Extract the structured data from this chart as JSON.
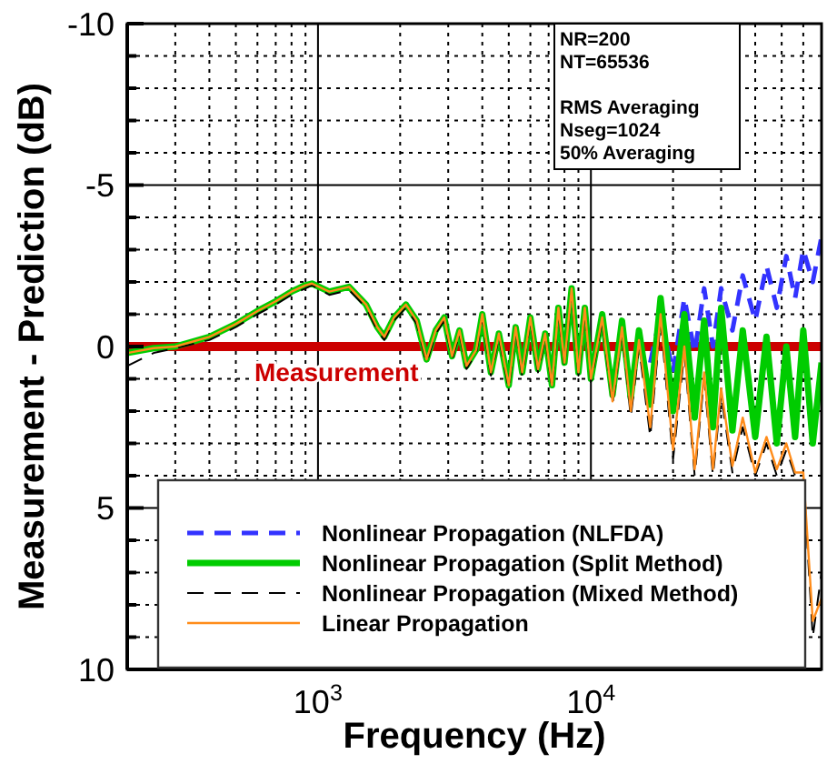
{
  "chart_data": {
    "type": "line",
    "xlabel": "Frequency (Hz)",
    "ylabel": "Measurement - Prediction (dB)",
    "log": "x",
    "xlim": [
      200,
      70000
    ],
    "ylim": [
      10,
      -10
    ],
    "xticks": [
      {
        "value": 300,
        "label": null
      },
      {
        "value": 400,
        "label": null
      },
      {
        "value": 500,
        "label": null
      },
      {
        "value": 600,
        "label": null
      },
      {
        "value": 700,
        "label": null
      },
      {
        "value": 800,
        "label": null
      },
      {
        "value": 900,
        "label": null
      },
      {
        "value": 1000,
        "label": "10$^{3}$"
      },
      {
        "value": 2000,
        "label": null
      },
      {
        "value": 3000,
        "label": null
      },
      {
        "value": 4000,
        "label": null
      },
      {
        "value": 5000,
        "label": null
      },
      {
        "value": 6000,
        "label": null
      },
      {
        "value": 7000,
        "label": null
      },
      {
        "value": 8000,
        "label": null
      },
      {
        "value": 9000,
        "label": null
      },
      {
        "value": 10000,
        "label": "10$^{4}$"
      },
      {
        "value": 20000,
        "label": null
      },
      {
        "value": 30000,
        "label": null
      },
      {
        "value": 40000,
        "label": null
      },
      {
        "value": 50000,
        "label": null
      },
      {
        "value": 60000,
        "label": null
      }
    ],
    "yticks": [
      -10,
      {
        "value": -9,
        "label": null
      },
      {
        "value": -8,
        "label": null
      },
      {
        "value": -7,
        "label": null
      },
      {
        "value": -6,
        "label": null
      },
      -5,
      {
        "value": -4,
        "label": null
      },
      {
        "value": -3,
        "label": null
      },
      {
        "value": -2,
        "label": null
      },
      {
        "value": -1,
        "label": null
      },
      0,
      {
        "value": 1,
        "label": null
      },
      {
        "value": 2,
        "label": null
      },
      {
        "value": 3,
        "label": null
      },
      {
        "value": 4,
        "label": null
      },
      5,
      {
        "value": 6,
        "label": null
      },
      {
        "value": 7,
        "label": null
      },
      {
        "value": 8,
        "label": null
      },
      {
        "value": 9,
        "label": null
      },
      10
    ],
    "grid": true,
    "legend": "bottom",
    "marker": "none",
    "x": [
      200,
      250,
      300,
      400,
      500,
      600,
      700,
      800,
      900,
      950,
      1100,
      1300,
      1500,
      1650,
      1750,
      1900,
      2100,
      2300,
      2500,
      2700,
      2900,
      3100,
      3300,
      3500,
      3800,
      4000,
      4300,
      4600,
      5000,
      5300,
      5600,
      6000,
      6400,
      6800,
      7200,
      7600,
      8000,
      8500,
      9000,
      9500,
      10000,
      11000,
      12000,
      13000,
      14000,
      15000,
      16500,
      18000,
      20000,
      22000,
      24000,
      26000,
      28000,
      30000,
      33000,
      36000,
      40000,
      44000,
      48000,
      52000,
      56000,
      60000,
      65000,
      70000
    ],
    "series": [
      {
        "name": "Nonlinear Propagation (NLFDA)",
        "color": "#3333ff",
        "line_style": "dashed",
        "values": [
          null,
          null,
          null,
          null,
          null,
          null,
          null,
          null,
          null,
          null,
          null,
          null,
          null,
          null,
          null,
          null,
          null,
          null,
          null,
          null,
          null,
          null,
          null,
          null,
          null,
          null,
          null,
          null,
          null,
          null,
          null,
          null,
          null,
          null,
          null,
          null,
          null,
          null,
          null,
          null,
          null,
          null,
          null,
          null,
          null,
          null,
          0.5,
          -1.0,
          0.8,
          -1.5,
          0.2,
          -1.8,
          0.0,
          -1.8,
          -0.5,
          -2.2,
          -0.8,
          -2.5,
          -1.2,
          -2.8,
          -1.5,
          -3.0,
          -2.0,
          -3.4
        ]
      },
      {
        "name": "Nonlinear Propagation (Split Method)",
        "color": "#00cc00",
        "line_style": "solid",
        "values": [
          0.2,
          0.05,
          0,
          -0.3,
          -0.7,
          -1.1,
          -1.4,
          -1.7,
          -1.9,
          -1.95,
          -1.7,
          -1.85,
          -1.3,
          -0.6,
          -0.3,
          -0.9,
          -1.3,
          -0.8,
          0.4,
          -0.5,
          -0.9,
          0.3,
          -0.5,
          0.6,
          0.1,
          -1.0,
          0.8,
          -0.4,
          1.2,
          -0.6,
          0.8,
          -0.9,
          0.7,
          -0.4,
          1.2,
          -1.2,
          0.5,
          -1.8,
          0.8,
          -1.2,
          1.0,
          -1.0,
          1.5,
          -0.8,
          1.6,
          -0.5,
          1.8,
          -1.5,
          2.0,
          -1.0,
          2.2,
          -0.8,
          2.5,
          -1.2,
          2.6,
          -0.5,
          2.8,
          -0.3,
          3.0,
          0,
          2.8,
          -0.5,
          3.0,
          0.5
        ]
      },
      {
        "name": "Nonlinear Propagation (Mixed Method)",
        "color": "#000000",
        "line_style": "dashed",
        "values": [
          0.6,
          0.2,
          0.05,
          -0.2,
          -0.6,
          -1.0,
          -1.3,
          -1.6,
          -1.8,
          -1.9,
          -1.6,
          -1.75,
          -1.2,
          -0.5,
          -0.2,
          -0.8,
          -1.2,
          -0.7,
          0.5,
          -0.4,
          -0.8,
          0.4,
          -0.4,
          0.7,
          0.2,
          -0.9,
          0.9,
          -0.3,
          1.3,
          -0.5,
          0.9,
          -0.8,
          0.8,
          -0.3,
          1.3,
          -1.1,
          0.6,
          -1.7,
          0.9,
          -1.1,
          1.1,
          -0.8,
          1.8,
          -0.5,
          2.2,
          0,
          2.8,
          -0.8,
          3.5,
          0.2,
          4.0,
          1.0,
          4.0,
          1.5,
          3.9,
          2.5,
          4.0,
          3.0,
          4.0,
          3.2,
          4.0,
          4.0,
          9.0,
          7.0
        ]
      },
      {
        "name": "Linear Propagation",
        "color": "#ff8c1a",
        "line_style": "solid",
        "values": [
          0.2,
          0.05,
          0,
          -0.3,
          -0.7,
          -1.1,
          -1.4,
          -1.7,
          -1.9,
          -1.95,
          -1.7,
          -1.85,
          -1.3,
          -0.6,
          -0.3,
          -0.9,
          -1.3,
          -0.8,
          0.4,
          -0.5,
          -0.9,
          0.3,
          -0.5,
          0.6,
          0.1,
          -1.0,
          0.8,
          -0.4,
          1.2,
          -0.6,
          0.8,
          -0.9,
          0.7,
          -0.4,
          1.2,
          -1.2,
          0.5,
          -1.8,
          0.8,
          -1.2,
          1.0,
          -0.9,
          1.7,
          -0.6,
          2.0,
          -0.2,
          2.5,
          -1.0,
          3.2,
          0,
          3.8,
          0.8,
          3.8,
          1.3,
          3.7,
          2.2,
          3.9,
          2.8,
          3.8,
          3.0,
          3.9,
          3.9,
          8.5,
          7.8
        ]
      }
    ],
    "ref_lines": [
      {
        "axis": "y",
        "value": 0,
        "label": "Measurement",
        "color": "#cc0000"
      }
    ],
    "annotations": [
      "NR=200\nNT=65536\n\nRMS Averaging\nNseg=1024\n50% Averaging"
    ]
  }
}
